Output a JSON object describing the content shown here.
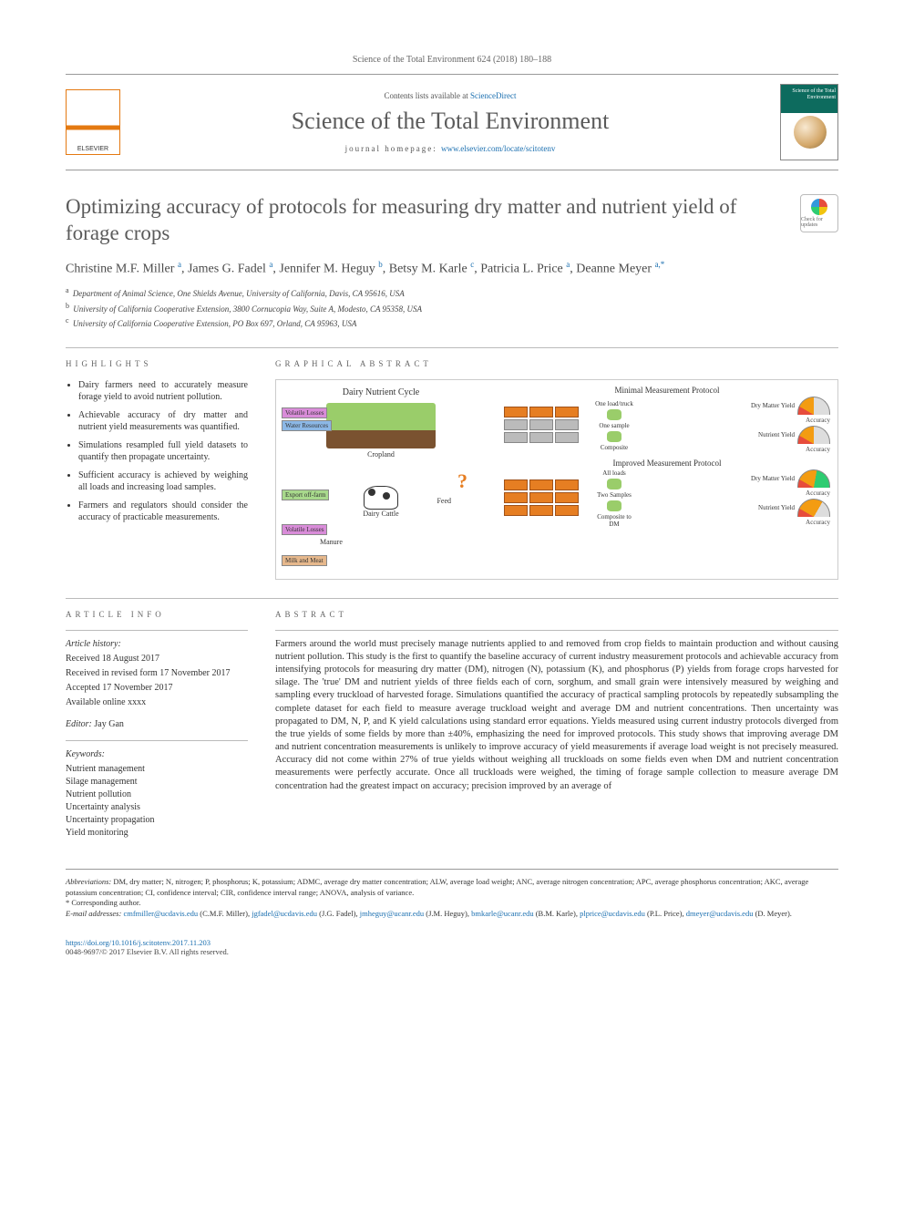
{
  "citation": "Science of the Total Environment 624 (2018) 180–188",
  "header": {
    "contents_prefix": "Contents lists available at ",
    "contents_link": "ScienceDirect",
    "journal": "Science of the Total Environment",
    "homepage_prefix": "journal homepage: ",
    "homepage_url": "www.elsevier.com/locate/scitotenv",
    "cover_title": "Science of the Total Environment"
  },
  "title": "Optimizing accuracy of protocols for measuring dry matter and nutrient yield of forage crops",
  "crossmark": "Check for updates",
  "authors_html": "Christine M.F. Miller <sup>a</sup>, James G. Fadel <sup>a</sup>, Jennifer M. Heguy <sup>b</sup>, Betsy M. Karle <sup>c</sup>, Patricia L. Price <sup>a</sup>, Deanne Meyer <sup>a,*</sup>",
  "affiliations": [
    {
      "sup": "a",
      "text": "Department of Animal Science, One Shields Avenue, University of California, Davis, CA 95616, USA"
    },
    {
      "sup": "b",
      "text": "University of California Cooperative Extension, 3800 Cornucopia Way, Suite A, Modesto, CA 95358, USA"
    },
    {
      "sup": "c",
      "text": "University of California Cooperative Extension, PO Box 697, Orland, CA 95963, USA"
    }
  ],
  "labels": {
    "highlights": "HIGHLIGHTS",
    "graphical": "GRAPHICAL ABSTRACT",
    "article_info": "ARTICLE INFO",
    "abstract": "ABSTRACT"
  },
  "highlights": [
    "Dairy farmers need to accurately measure forage yield to avoid nutrient pollution.",
    "Achievable accuracy of dry matter and nutrient yield measurements was quantified.",
    "Simulations resampled full yield datasets to quantify then propagate uncertainty.",
    "Sufficient accuracy is achieved by weighing all loads and increasing load samples.",
    "Farmers and regulators should consider the accuracy of practicable measurements."
  ],
  "graphical_abstract": {
    "cycle_title": "Dairy Nutrient Cycle",
    "cropland_label": "Cropland",
    "cattle_label": "Dairy Cattle",
    "feed_label": "Feed",
    "manure_label": "Manure",
    "tags": {
      "volatile_losses": "Volatile Losses",
      "water_resources": "Water Resources",
      "export_off": "Export off-farm",
      "milk_meat": "Milk and Meat"
    },
    "protocols": [
      {
        "title": "Minimal Measurement Protocol",
        "truck_hl_rows": 1,
        "sample_labels": [
          "One load/truck",
          "One sample",
          "Composite"
        ],
        "gauges": [
          {
            "label": "Dry Matter Yield",
            "level": "low"
          },
          {
            "label": "Accuracy",
            "level": ""
          },
          {
            "label": "Nutrient Yield",
            "level": "low"
          },
          {
            "label": "Accuracy",
            "level": ""
          }
        ]
      },
      {
        "title": "Improved Measurement Protocol",
        "truck_hl_rows": 3,
        "sample_labels": [
          "All loads",
          "Two Samples",
          "Composite to DM"
        ],
        "gauges": [
          {
            "label": "Dry Matter Yield",
            "level": "high"
          },
          {
            "label": "Accuracy",
            "level": ""
          },
          {
            "label": "Nutrient Yield",
            "level": "mid"
          },
          {
            "label": "Accuracy",
            "level": ""
          }
        ]
      }
    ],
    "colors": {
      "truck_on": "#e67e22",
      "truck_off": "#bbbbbb",
      "arrow": "#6aa8d8",
      "crop_green": "#9acd6a",
      "soil": "#7a5230"
    }
  },
  "article_info": {
    "history_head": "Article history:",
    "history": [
      "Received 18 August 2017",
      "Received in revised form 17 November 2017",
      "Accepted 17 November 2017",
      "Available online xxxx"
    ],
    "editor_label": "Editor:",
    "editor": "Jay Gan",
    "keywords_head": "Keywords:",
    "keywords": [
      "Nutrient management",
      "Silage management",
      "Nutrient pollution",
      "Uncertainty analysis",
      "Uncertainty propagation",
      "Yield monitoring"
    ]
  },
  "abstract": "Farmers around the world must precisely manage nutrients applied to and removed from crop fields to maintain production and without causing nutrient pollution. This study is the first to quantify the baseline accuracy of current industry measurement protocols and achievable accuracy from intensifying protocols for measuring dry matter (DM), nitrogen (N), potassium (K), and phosphorus (P) yields from forage crops harvested for silage. The 'true' DM and nutrient yields of three fields each of corn, sorghum, and small grain were intensively measured by weighing and sampling every truckload of harvested forage. Simulations quantified the accuracy of practical sampling protocols by repeatedly subsampling the complete dataset for each field to measure average truckload weight and average DM and nutrient concentrations. Then uncertainty was propagated to DM, N, P, and K yield calculations using standard error equations. Yields measured using current industry protocols diverged from the true yields of some fields by more than ±40%, emphasizing the need for improved protocols. This study shows that improving average DM and nutrient concentration measurements is unlikely to improve accuracy of yield measurements if average load weight is not precisely measured. Accuracy did not come within 27% of true yields without weighing all truckloads on some fields even when DM and nutrient concentration measurements were perfectly accurate. Once all truckloads were weighed, the timing of forage sample collection to measure average DM concentration had the greatest impact on accuracy; precision improved by an average of",
  "footnotes": {
    "abbrev_label": "Abbreviations:",
    "abbrev": "DM, dry matter; N, nitrogen; P, phosphorus; K, potassium; ADMC, average dry matter concentration; ALW, average load weight; ANC, average nitrogen concentration; APC, average phosphorus concentration; AKC, average potassium concentration; CI, confidence interval; CIR, confidence interval range; ANOVA, analysis of variance.",
    "corr": "* Corresponding author.",
    "email_label": "E-mail addresses:",
    "emails": [
      {
        "addr": "cmfmiller@ucdavis.edu",
        "who": "(C.M.F. Miller)"
      },
      {
        "addr": "jgfadel@ucdavis.edu",
        "who": "(J.G. Fadel)"
      },
      {
        "addr": "jmheguy@ucanr.edu",
        "who": "(J.M. Heguy)"
      },
      {
        "addr": "bmkarle@ucanr.edu",
        "who": "(B.M. Karle)"
      },
      {
        "addr": "plprice@ucdavis.edu",
        "who": "(P.L. Price)"
      },
      {
        "addr": "dmeyer@ucdavis.edu",
        "who": "(D. Meyer)"
      }
    ]
  },
  "footer": {
    "doi": "https://doi.org/10.1016/j.scitotenv.2017.11.203",
    "copyright": "0048-9697/© 2017 Elsevier B.V. All rights reserved."
  }
}
